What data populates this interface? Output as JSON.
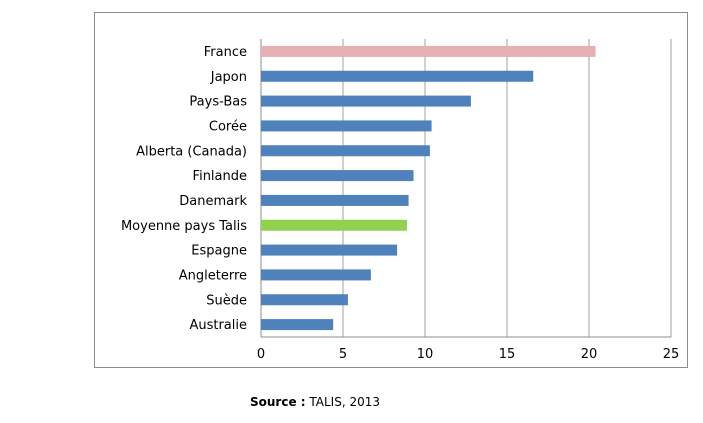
{
  "chart_data": {
    "type": "bar",
    "orientation": "horizontal",
    "categories": [
      "France",
      "Japon",
      "Pays-Bas",
      "Corée",
      "Alberta (Canada)",
      "Finlande",
      "Danemark",
      "Moyenne pays Talis",
      "Espagne",
      "Angleterre",
      "Suède",
      "Australie"
    ],
    "values": [
      20.4,
      16.6,
      12.8,
      10.4,
      10.3,
      9.3,
      9.0,
      8.9,
      8.3,
      6.7,
      5.3,
      4.4
    ],
    "colors": [
      "#E6B0B3",
      "#4F81BD",
      "#4F81BD",
      "#4F81BD",
      "#4F81BD",
      "#4F81BD",
      "#4F81BD",
      "#92D050",
      "#4F81BD",
      "#4F81BD",
      "#4F81BD",
      "#4F81BD"
    ],
    "xlim": [
      0,
      25
    ],
    "xticks": [
      0,
      5,
      10,
      15,
      20,
      25
    ],
    "title": "",
    "xlabel": "",
    "ylabel": "",
    "grid": "vertical",
    "legend": "none"
  },
  "source": {
    "label": "Source :",
    "text": " TALIS, 2013"
  }
}
